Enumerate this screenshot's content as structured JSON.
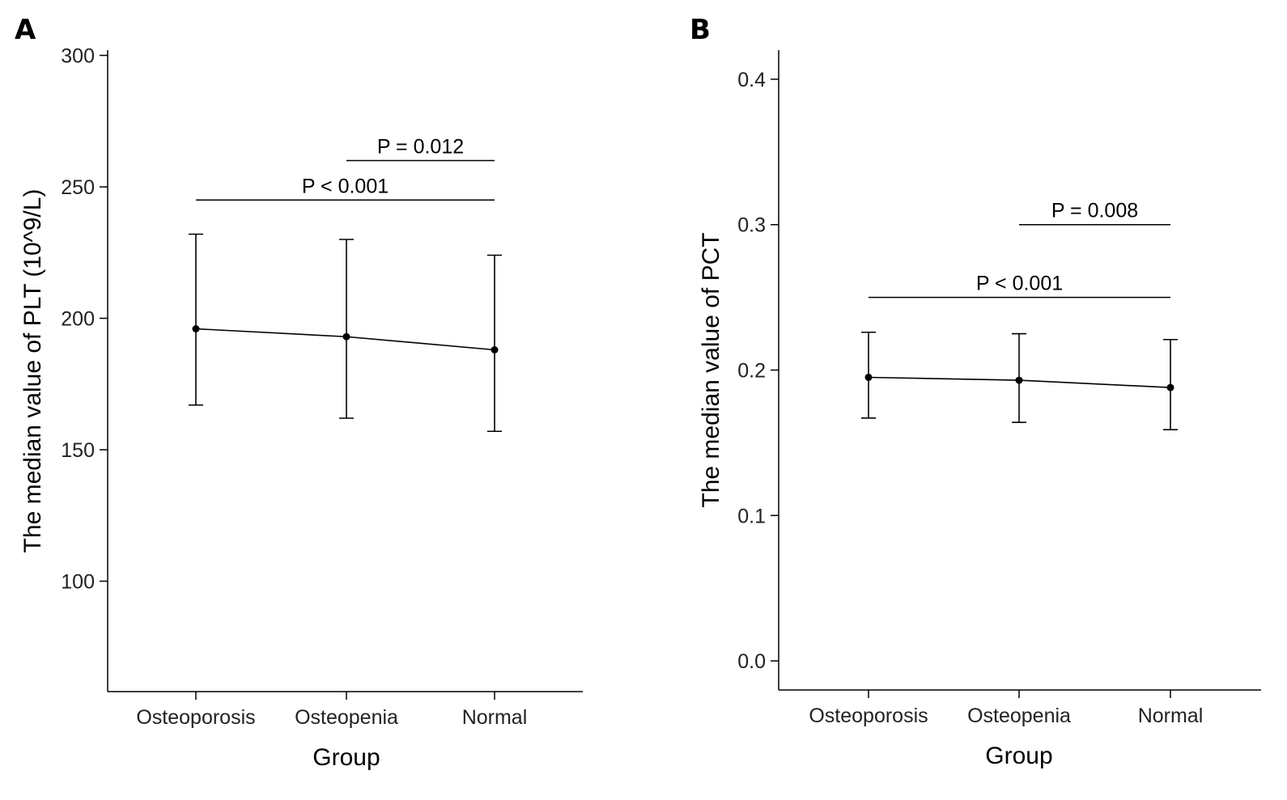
{
  "chart_data": [
    {
      "panel_label": "A",
      "type": "line",
      "categories": [
        "Osteoporosis",
        "Osteopenia",
        "Normal"
      ],
      "series": [
        {
          "values": [
            196,
            193,
            188
          ],
          "error_low": [
            167,
            162,
            157
          ],
          "error_high": [
            232,
            230,
            224
          ]
        }
      ],
      "xlabel": "Group",
      "ylabel": "The median value of PLT (10^9/L)",
      "ylim": [
        58,
        302
      ],
      "yticks": [
        100,
        150,
        200,
        250,
        300
      ],
      "grid": false,
      "annotations": [
        {
          "text": "P < 0.001",
          "from": 0,
          "to": 2,
          "y": 245
        },
        {
          "text": "P = 0.012",
          "from": 1,
          "to": 2,
          "y": 260
        }
      ]
    },
    {
      "panel_label": "B",
      "type": "line",
      "categories": [
        "Osteoporosis",
        "Osteopenia",
        "Normal"
      ],
      "series": [
        {
          "values": [
            0.195,
            0.193,
            0.188
          ],
          "error_low": [
            0.167,
            0.164,
            0.159
          ],
          "error_high": [
            0.226,
            0.225,
            0.221
          ]
        }
      ],
      "xlabel": "Group",
      "ylabel": "The median value of PCT",
      "ylim": [
        -0.02,
        0.42
      ],
      "yticks": [
        0.0,
        0.1,
        0.2,
        0.3,
        0.4
      ],
      "grid": false,
      "annotations": [
        {
          "text": "P < 0.001",
          "from": 0,
          "to": 2,
          "y": 0.25
        },
        {
          "text": "P = 0.008",
          "from": 1,
          "to": 2,
          "y": 0.3
        }
      ]
    }
  ]
}
